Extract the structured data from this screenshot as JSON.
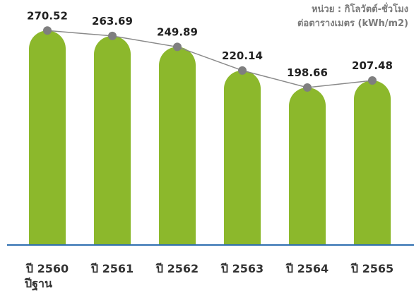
{
  "chart_data": {
    "type": "bar",
    "categories": [
      "ปี 2560",
      "ปี 2561",
      "ปี 2562",
      "ปี 2563",
      "ปี 2564",
      "ปี 2565"
    ],
    "category_sublabels": [
      "ปีฐาน",
      "",
      "",
      "",
      "",
      ""
    ],
    "values": [
      270.52,
      263.69,
      249.89,
      220.14,
      198.66,
      207.48
    ],
    "unit_line1": "หน่วย : กิโลวัตต์-ชั่วโมง",
    "unit_line2": "ต่อตารางเมตร (kWh/m2)",
    "ylim": [
      0,
      285
    ],
    "grid": false,
    "overlay_line": true,
    "colors": {
      "bar": "#8cb82c",
      "line": "#8a8a8a",
      "point": "#7f7f7f",
      "axis": "#2f6fb0"
    }
  }
}
